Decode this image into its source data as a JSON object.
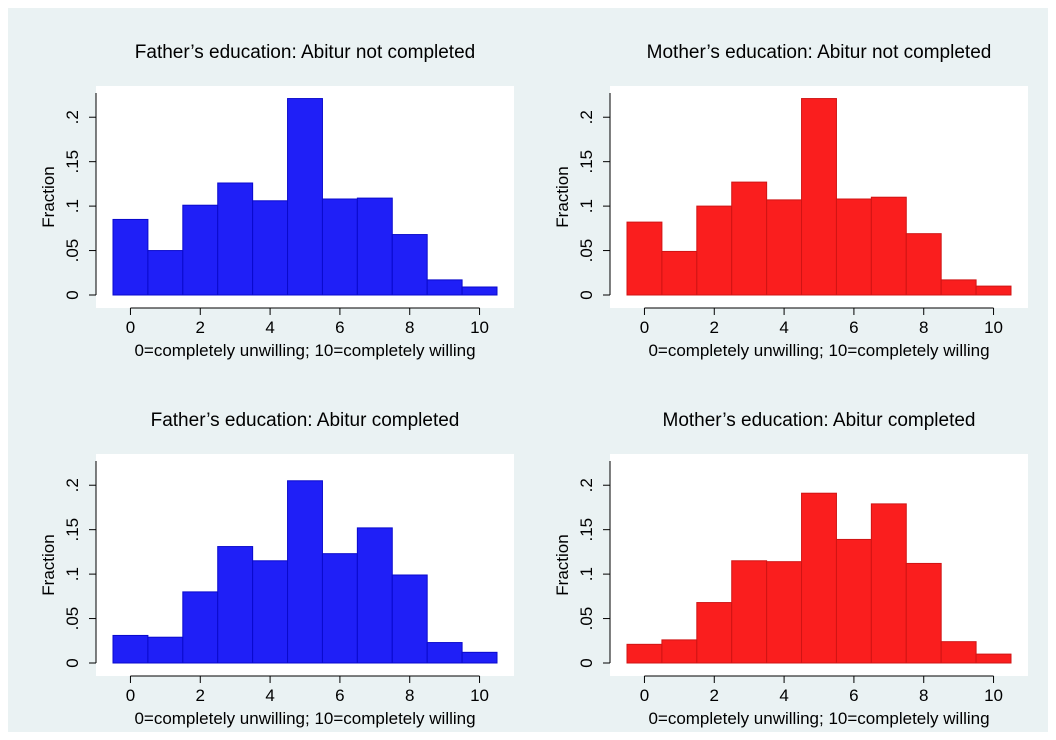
{
  "colors": {
    "outer_background": "#EAF2F3",
    "plot_background": "#FFFFFF",
    "blue_fill": "#1F1FF7",
    "blue_edge": "#0A0ACC",
    "red_fill": "#FA1E1E",
    "red_edge": "#D01414",
    "axis": "#000000"
  },
  "chart_data": [
    {
      "type": "bar",
      "title": "Father’s education: Abitur not completed",
      "xlabel": "0=completely unwilling; 10=completely willing",
      "ylabel": "Fraction",
      "color": "blue",
      "categories": [
        0,
        1,
        2,
        3,
        4,
        5,
        6,
        7,
        8,
        9,
        10
      ],
      "values": [
        0.085,
        0.05,
        0.101,
        0.126,
        0.106,
        0.221,
        0.108,
        0.109,
        0.068,
        0.017,
        0.009
      ],
      "xlim": [
        -0.5,
        10.5
      ],
      "ylim": [
        0,
        0.225
      ],
      "xticks": [
        0,
        2,
        4,
        6,
        8,
        10
      ],
      "xtick_labels": [
        "0",
        "2",
        "4",
        "6",
        "8",
        "10"
      ],
      "yticks": [
        0,
        0.05,
        0.1,
        0.15,
        0.2
      ],
      "ytick_labels": [
        "0",
        ".05",
        ".1",
        ".15",
        ".2"
      ],
      "grid": false,
      "legend": "none"
    },
    {
      "type": "bar",
      "title": "Mother’s education: Abitur not completed",
      "xlabel": "0=completely unwilling; 10=completely willing",
      "ylabel": "Fraction",
      "color": "red",
      "categories": [
        0,
        1,
        2,
        3,
        4,
        5,
        6,
        7,
        8,
        9,
        10
      ],
      "values": [
        0.082,
        0.049,
        0.1,
        0.127,
        0.107,
        0.221,
        0.108,
        0.11,
        0.069,
        0.017,
        0.01
      ],
      "xlim": [
        -0.5,
        10.5
      ],
      "ylim": [
        0,
        0.225
      ],
      "xticks": [
        0,
        2,
        4,
        6,
        8,
        10
      ],
      "xtick_labels": [
        "0",
        "2",
        "4",
        "6",
        "8",
        "10"
      ],
      "yticks": [
        0,
        0.05,
        0.1,
        0.15,
        0.2
      ],
      "ytick_labels": [
        "0",
        ".05",
        ".1",
        ".15",
        ".2"
      ],
      "grid": false,
      "legend": "none"
    },
    {
      "type": "bar",
      "title": "Father’s education: Abitur completed",
      "xlabel": "0=completely unwilling; 10=completely willing",
      "ylabel": "Fraction",
      "color": "blue",
      "categories": [
        0,
        1,
        2,
        3,
        4,
        5,
        6,
        7,
        8,
        9,
        10
      ],
      "values": [
        0.031,
        0.029,
        0.08,
        0.131,
        0.115,
        0.205,
        0.123,
        0.152,
        0.099,
        0.023,
        0.012
      ],
      "xlim": [
        -0.5,
        10.5
      ],
      "ylim": [
        0,
        0.225
      ],
      "xticks": [
        0,
        2,
        4,
        6,
        8,
        10
      ],
      "xtick_labels": [
        "0",
        "2",
        "4",
        "6",
        "8",
        "10"
      ],
      "yticks": [
        0,
        0.05,
        0.1,
        0.15,
        0.2
      ],
      "ytick_labels": [
        "0",
        ".05",
        ".1",
        ".15",
        ".2"
      ],
      "grid": false,
      "legend": "none"
    },
    {
      "type": "bar",
      "title": "Mother’s education: Abitur completed",
      "xlabel": "0=completely unwilling; 10=completely willing",
      "ylabel": "Fraction",
      "color": "red",
      "categories": [
        0,
        1,
        2,
        3,
        4,
        5,
        6,
        7,
        8,
        9,
        10
      ],
      "values": [
        0.021,
        0.026,
        0.068,
        0.115,
        0.114,
        0.191,
        0.139,
        0.179,
        0.112,
        0.024,
        0.01
      ],
      "xlim": [
        -0.5,
        10.5
      ],
      "ylim": [
        0,
        0.225
      ],
      "xticks": [
        0,
        2,
        4,
        6,
        8,
        10
      ],
      "xtick_labels": [
        "0",
        "2",
        "4",
        "6",
        "8",
        "10"
      ],
      "yticks": [
        0,
        0.05,
        0.1,
        0.15,
        0.2
      ],
      "ytick_labels": [
        "0",
        ".05",
        ".1",
        ".15",
        ".2"
      ],
      "grid": false,
      "legend": "none"
    }
  ]
}
